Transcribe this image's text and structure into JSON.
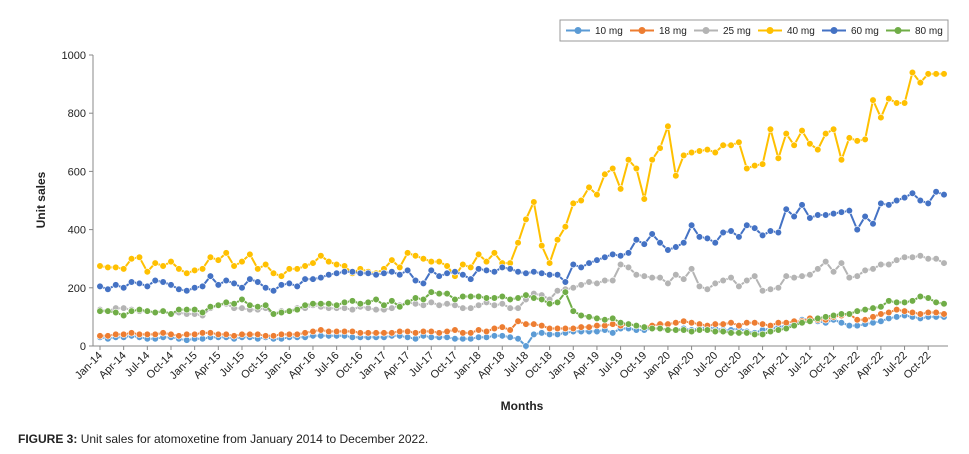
{
  "chart_data": {
    "type": "line",
    "x_label": "Months",
    "y_label": "Unit sales",
    "caption": {
      "label": "FIGURE 3:",
      "text": "Unit sales for atomoxetine from January 2014 to December 2022."
    },
    "categories": [
      "Jan-14",
      null,
      null,
      "Apr-14",
      null,
      null,
      "Jul-14",
      null,
      null,
      "Oct-14",
      null,
      null,
      "Jan-15",
      null,
      null,
      "Apr-15",
      null,
      null,
      "Jul-15",
      null,
      null,
      "Oct-15",
      null,
      null,
      "Jan-16",
      null,
      null,
      "Apr-16",
      null,
      null,
      "Jul-16",
      null,
      null,
      "Oct-16",
      null,
      null,
      "Jan-17",
      null,
      null,
      "Apr-17",
      null,
      null,
      "Jul-17",
      null,
      null,
      "Oct-17",
      null,
      null,
      "Jan-18",
      null,
      null,
      "Apr-18",
      null,
      null,
      "Jul-18",
      null,
      null,
      "Oct-18",
      null,
      null,
      "Jan-19",
      null,
      null,
      "Apr-19",
      null,
      null,
      "Jul-19",
      null,
      null,
      "Oct-19",
      null,
      null,
      "Jan-20",
      null,
      null,
      "Apr-20",
      null,
      null,
      "Jul-20",
      null,
      null,
      "Oct-20",
      null,
      null,
      "Jan-21",
      null,
      null,
      "Apr-21",
      null,
      null,
      "Jul-21",
      null,
      null,
      "Oct-21",
      null,
      null,
      "Jan-22",
      null,
      null,
      "Apr-22",
      null,
      null,
      "Jul-22",
      null,
      null,
      "Oct-22",
      null,
      null
    ],
    "ylim": [
      0,
      1000
    ],
    "yticks": [
      0,
      200,
      400,
      600,
      800,
      1000
    ],
    "grid": false,
    "legend": "top-right",
    "series": [
      {
        "name": "10 mg",
        "color": "#5b9bd5",
        "values": [
          30,
          25,
          30,
          30,
          35,
          30,
          25,
          25,
          30,
          30,
          25,
          20,
          25,
          25,
          30,
          30,
          30,
          25,
          30,
          30,
          25,
          30,
          25,
          25,
          30,
          30,
          30,
          35,
          35,
          35,
          35,
          35,
          30,
          30,
          30,
          30,
          30,
          35,
          35,
          30,
          25,
          35,
          30,
          30,
          30,
          25,
          25,
          25,
          30,
          30,
          35,
          35,
          30,
          25,
          0,
          40,
          45,
          40,
          40,
          45,
          50,
          50,
          50,
          50,
          55,
          45,
          60,
          60,
          55,
          55,
          60,
          60,
          55,
          55,
          60,
          55,
          60,
          65,
          60,
          55,
          55,
          60,
          50,
          45,
          55,
          60,
          65,
          70,
          75,
          90,
          95,
          85,
          80,
          90,
          80,
          70,
          70,
          75,
          80,
          85,
          95,
          100,
          105,
          100,
          95,
          100,
          100,
          100
        ]
      },
      {
        "name": "18 mg",
        "color": "#ed7d31",
        "values": [
          35,
          35,
          40,
          40,
          45,
          40,
          40,
          40,
          45,
          40,
          35,
          40,
          40,
          45,
          45,
          40,
          40,
          35,
          40,
          40,
          40,
          35,
          35,
          40,
          40,
          40,
          45,
          50,
          55,
          50,
          50,
          50,
          50,
          45,
          45,
          45,
          45,
          45,
          50,
          50,
          45,
          50,
          50,
          45,
          50,
          55,
          45,
          45,
          55,
          50,
          60,
          65,
          55,
          85,
          75,
          75,
          70,
          60,
          60,
          60,
          60,
          65,
          65,
          70,
          70,
          75,
          70,
          75,
          70,
          65,
          70,
          75,
          75,
          80,
          85,
          80,
          75,
          70,
          75,
          75,
          80,
          70,
          80,
          80,
          75,
          70,
          80,
          80,
          85,
          85,
          95,
          90,
          90,
          100,
          105,
          110,
          90,
          90,
          100,
          110,
          115,
          125,
          120,
          115,
          110,
          115,
          115,
          110
        ]
      },
      {
        "name": "25 mg",
        "color": "#b4b4b4",
        "values": [
          125,
          120,
          130,
          130,
          125,
          120,
          120,
          115,
          120,
          110,
          115,
          110,
          110,
          105,
          130,
          140,
          145,
          130,
          130,
          125,
          125,
          130,
          110,
          120,
          120,
          130,
          130,
          140,
          135,
          130,
          130,
          130,
          125,
          135,
          130,
          125,
          125,
          130,
          140,
          150,
          145,
          140,
          150,
          140,
          145,
          140,
          130,
          130,
          140,
          150,
          140,
          145,
          130,
          130,
          160,
          180,
          175,
          160,
          190,
          195,
          200,
          210,
          220,
          215,
          225,
          225,
          280,
          270,
          245,
          240,
          235,
          235,
          215,
          245,
          230,
          265,
          205,
          195,
          215,
          225,
          235,
          205,
          225,
          240,
          190,
          195,
          200,
          240,
          235,
          240,
          245,
          265,
          290,
          255,
          285,
          235,
          240,
          260,
          265,
          280,
          280,
          295,
          305,
          305,
          310,
          300,
          300,
          285
        ]
      },
      {
        "name": "40 mg",
        "color": "#ffc000",
        "values": [
          275,
          270,
          270,
          265,
          300,
          305,
          255,
          285,
          275,
          290,
          265,
          250,
          260,
          265,
          305,
          295,
          320,
          275,
          290,
          315,
          265,
          280,
          250,
          240,
          265,
          265,
          275,
          285,
          310,
          290,
          280,
          275,
          250,
          265,
          255,
          250,
          265,
          295,
          270,
          320,
          310,
          300,
          290,
          290,
          275,
          240,
          280,
          270,
          315,
          290,
          320,
          285,
          285,
          355,
          435,
          495,
          345,
          285,
          365,
          410,
          490,
          500,
          545,
          520,
          590,
          610,
          540,
          640,
          610,
          505,
          640,
          680,
          755,
          585,
          655,
          665,
          670,
          675,
          665,
          690,
          690,
          700,
          610,
          620,
          625,
          745,
          645,
          730,
          690,
          740,
          695,
          675,
          730,
          745,
          640,
          715,
          705,
          710,
          845,
          785,
          850,
          835,
          835,
          940,
          905,
          935,
          935,
          935
        ]
      },
      {
        "name": "60 mg",
        "color": "#4472c4",
        "values": [
          205,
          195,
          210,
          200,
          220,
          215,
          205,
          225,
          220,
          210,
          195,
          190,
          200,
          205,
          240,
          210,
          225,
          215,
          200,
          230,
          220,
          200,
          190,
          210,
          215,
          205,
          230,
          230,
          235,
          245,
          250,
          255,
          255,
          250,
          250,
          245,
          250,
          255,
          245,
          260,
          225,
          215,
          260,
          240,
          250,
          255,
          245,
          230,
          265,
          260,
          255,
          270,
          265,
          255,
          250,
          255,
          250,
          245,
          245,
          220,
          280,
          270,
          285,
          295,
          305,
          315,
          310,
          320,
          365,
          350,
          385,
          355,
          330,
          340,
          355,
          415,
          375,
          370,
          355,
          390,
          395,
          375,
          415,
          405,
          380,
          395,
          390,
          470,
          445,
          485,
          440,
          450,
          450,
          455,
          460,
          465,
          400,
          445,
          420,
          490,
          485,
          500,
          510,
          525,
          500,
          490,
          530,
          520
        ]
      },
      {
        "name": "80 mg",
        "color": "#70ad47",
        "values": [
          120,
          120,
          115,
          105,
          120,
          125,
          120,
          115,
          120,
          110,
          125,
          125,
          125,
          115,
          135,
          140,
          150,
          145,
          160,
          140,
          135,
          140,
          110,
          115,
          120,
          125,
          140,
          145,
          145,
          145,
          140,
          150,
          155,
          145,
          150,
          160,
          140,
          155,
          135,
          150,
          165,
          160,
          185,
          180,
          180,
          160,
          170,
          170,
          170,
          165,
          165,
          170,
          160,
          165,
          175,
          165,
          160,
          145,
          150,
          185,
          120,
          105,
          100,
          95,
          90,
          95,
          80,
          75,
          70,
          65,
          60,
          60,
          55,
          55,
          55,
          50,
          55,
          55,
          50,
          50,
          45,
          45,
          45,
          40,
          40,
          50,
          55,
          60,
          70,
          80,
          85,
          95,
          100,
          105,
          110,
          110,
          120,
          125,
          130,
          135,
          155,
          150,
          150,
          155,
          170,
          165,
          150,
          145
        ]
      }
    ]
  }
}
